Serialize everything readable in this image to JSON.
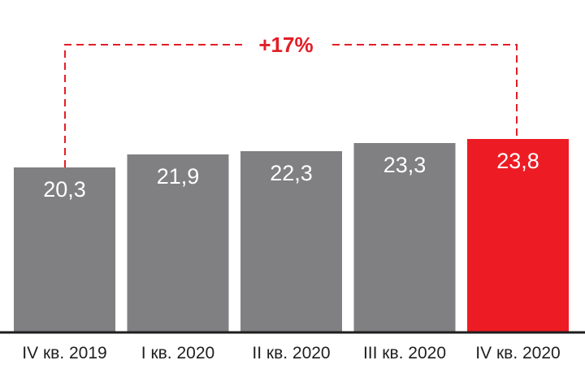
{
  "chart_data": {
    "type": "bar",
    "categories": [
      "IV кв. 2019",
      "I кв. 2020",
      "II кв. 2020",
      "III кв. 2020",
      "IV кв. 2020"
    ],
    "values": [
      20.3,
      21.9,
      22.3,
      23.3,
      23.8
    ],
    "value_labels": [
      "20,3",
      "21,9",
      "22,3",
      "23,3",
      "23,8"
    ],
    "highlight_index": 4,
    "bar_color": "#808083",
    "highlight_color": "#ed1c24",
    "annotation": {
      "text": "+17%",
      "from_index": 0,
      "to_index": 4,
      "color": "#e31e26"
    },
    "ylim": [
      0,
      29.1
    ],
    "grid": false,
    "title": "",
    "xlabel": "",
    "ylabel": ""
  }
}
